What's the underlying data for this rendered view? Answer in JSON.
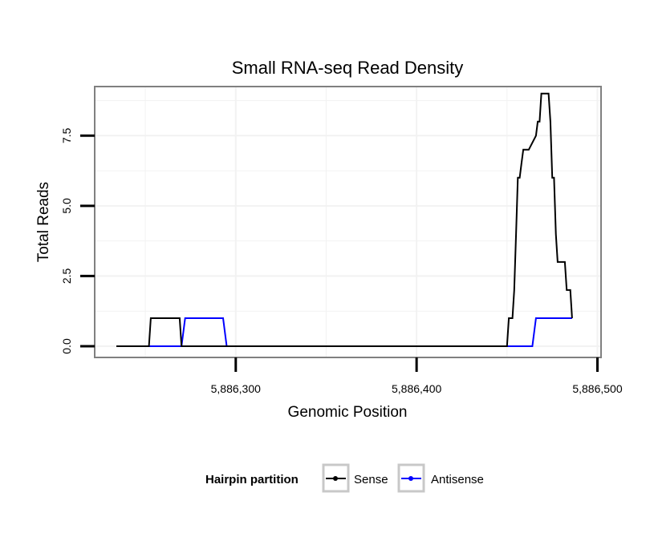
{
  "chart_data": {
    "type": "line",
    "title": "Small RNA-seq Read Density",
    "xlabel": "Genomic Position",
    "ylabel": "Total Reads",
    "xlim": [
      5886222,
      5886502
    ],
    "ylim": [
      -0.4,
      9.25
    ],
    "x_ticks": [
      5886300,
      5886400,
      5886500
    ],
    "x_tick_labels": [
      "5,886,300",
      "5,886,400",
      "5,886,500"
    ],
    "y_ticks": [
      0,
      2.5,
      5,
      7.5
    ],
    "y_tick_labels": [
      "0.0",
      "2.5",
      "5.0",
      "7.5"
    ],
    "grid": true,
    "legend": {
      "title": "Hairpin partition",
      "position": "bottom"
    },
    "series": [
      {
        "name": "Sense",
        "color": "#000000",
        "x": [
          5886234,
          5886252,
          5886253,
          5886269,
          5886270,
          5886450,
          5886451,
          5886453,
          5886454,
          5886455,
          5886456,
          5886457,
          5886458,
          5886459,
          5886460,
          5886461,
          5886462,
          5886466,
          5886467,
          5886468,
          5886469,
          5886470,
          5886473,
          5886474,
          5886475,
          5886476,
          5886477,
          5886478,
          5886479,
          5886482,
          5886483,
          5886485,
          5886486
        ],
        "y": [
          0,
          0,
          1,
          1,
          0,
          0,
          1,
          1,
          2,
          4,
          6,
          6,
          6.5,
          7,
          7,
          7,
          7,
          7.5,
          8,
          8,
          9,
          9,
          9,
          8,
          6,
          6,
          4,
          3,
          3,
          3,
          2,
          2,
          1
        ]
      },
      {
        "name": "Antisense",
        "color": "#0000ff",
        "x": [
          5886234,
          5886270,
          5886272,
          5886293,
          5886295,
          5886464,
          5886466,
          5886486
        ],
        "y": [
          0,
          0,
          1,
          1,
          0,
          0,
          1,
          1
        ]
      }
    ]
  }
}
